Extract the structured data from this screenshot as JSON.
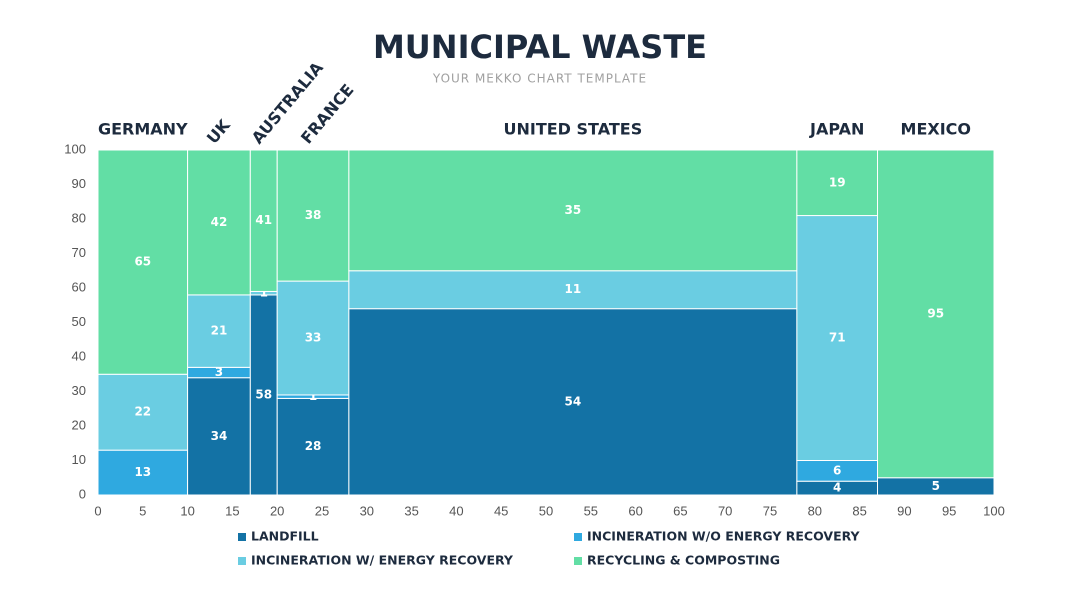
{
  "chart_data": {
    "type": "mekko",
    "title": "MUNICIPAL WASTE",
    "subtitle": "YOUR MEKKO CHART TEMPLATE",
    "categories": [
      "GERMANY",
      "UK",
      "AUSTRALIA",
      "FRANCE",
      "UNITED STATES",
      "JAPAN",
      "MEXICO"
    ],
    "widths": [
      10,
      7,
      3,
      8,
      50,
      9,
      13
    ],
    "series": [
      {
        "name": "LANDFILL",
        "color": "#1372a5",
        "values": [
          0,
          34,
          58,
          28,
          54,
          4,
          5
        ]
      },
      {
        "name": "INCINERATION W/O ENERGY RECOVERY",
        "color": "#2fa9e0",
        "values": [
          13,
          3,
          0,
          1,
          0,
          6,
          0
        ]
      },
      {
        "name": "INCINERATION W/ ENERGY RECOVERY",
        "color": "#6acde2",
        "values": [
          22,
          21,
          1,
          33,
          11,
          71,
          0
        ]
      },
      {
        "name": "RECYCLING & COMPOSTING",
        "color": "#62dea5",
        "values": [
          65,
          42,
          41,
          38,
          35,
          19,
          95
        ]
      }
    ],
    "xlim": [
      0,
      100
    ],
    "xticks": [
      0,
      5,
      10,
      15,
      20,
      25,
      30,
      35,
      40,
      45,
      50,
      55,
      60,
      65,
      70,
      75,
      80,
      85,
      90,
      95,
      100
    ],
    "ylim": [
      0,
      100
    ],
    "yticks": [
      0,
      10,
      20,
      30,
      40,
      50,
      60,
      70,
      80,
      90,
      100
    ]
  }
}
